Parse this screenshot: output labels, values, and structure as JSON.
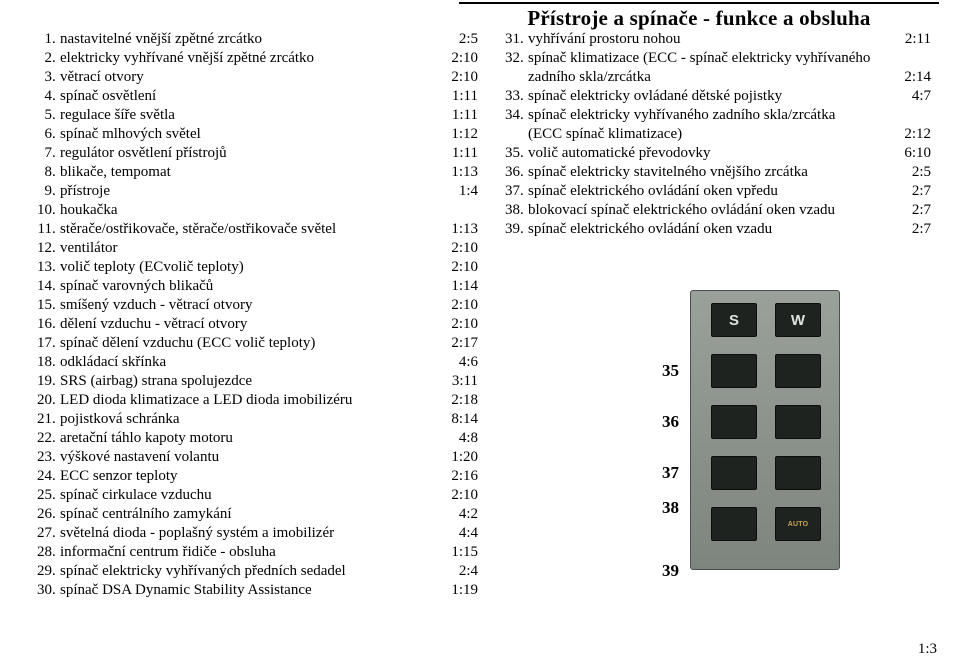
{
  "title": "Přístroje a spínače - funkce a obsluha",
  "footer_page": "1:3",
  "panel_top_letters": [
    "S",
    "W"
  ],
  "panel_auto_text": "AUTO",
  "panel_labels": [
    "35",
    "36",
    "37",
    "38",
    "39"
  ],
  "left_items": [
    {
      "n": "1",
      "t": "nastavitelné vnější zpětné zrcátko",
      "r": "2:5"
    },
    {
      "n": "2",
      "t": "elektricky vyhřívané vnější zpětné zrcátko",
      "r": "2:10"
    },
    {
      "n": "3",
      "t": "větrací otvory",
      "r": "2:10"
    },
    {
      "n": "4",
      "t": "spínač osvětlení",
      "r": "1:11"
    },
    {
      "n": "5",
      "t": "regulace šíře světla",
      "r": "1:11"
    },
    {
      "n": "6",
      "t": "spínač mlhových světel",
      "r": "1:12"
    },
    {
      "n": "7",
      "t": "regulátor osvětlení přístrojů",
      "r": "1:11"
    },
    {
      "n": "8",
      "t": "blikače, tempomat",
      "r": "1:13"
    },
    {
      "n": "9",
      "t": "přístroje",
      "r": "1:4"
    },
    {
      "n": "10",
      "t": "houkačka",
      "r": ""
    },
    {
      "n": "11",
      "t": "stěrače/ostřikovače, stěrače/ostřikovače světel",
      "r": "1:13"
    },
    {
      "n": "12",
      "t": "ventilátor",
      "r": "2:10"
    },
    {
      "n": "13",
      "t": "volič teploty (ECvolič teploty)",
      "r": "2:10"
    },
    {
      "n": "14",
      "t": "spínač varovných blikačů",
      "r": "1:14"
    },
    {
      "n": "15",
      "t": "smíšený vzduch - větrací otvory",
      "r": "2:10"
    },
    {
      "n": "16",
      "t": "dělení vzduchu - větrací otvory",
      "r": "2:10"
    },
    {
      "n": "17",
      "t": "spínač dělení vzduchu (ECC volič teploty)",
      "r": "2:17"
    },
    {
      "n": "18",
      "t": "odkládací skřínka",
      "r": "4:6"
    },
    {
      "n": "19",
      "t": "SRS (airbag) strana spolujezdce",
      "r": "3:11"
    },
    {
      "n": "20",
      "t": "LED dioda klimatizace a LED dioda imobilizéru",
      "r": "2:18"
    },
    {
      "n": "21",
      "t": "pojistková schránka",
      "r": "8:14"
    },
    {
      "n": "22",
      "t": "aretační táhlo kapoty motoru",
      "r": "4:8"
    },
    {
      "n": "23",
      "t": "výškové nastavení volantu",
      "r": "1:20"
    },
    {
      "n": "24",
      "t": "ECC senzor teploty",
      "r": "2:16"
    },
    {
      "n": "25",
      "t": "spínač cirkulace vzduchu",
      "r": "2:10"
    },
    {
      "n": "26",
      "t": "spínač centrálního zamykání",
      "r": "4:2"
    },
    {
      "n": "27",
      "t": "světelná dioda - poplašný systém a imobilizér",
      "r": "4:4"
    },
    {
      "n": "28",
      "t": "informační centrum řidiče - obsluha",
      "r": "1:15"
    },
    {
      "n": "29",
      "t": "spínač elektricky vyhřívaných předních sedadel",
      "r": "2:4"
    },
    {
      "n": "30",
      "t": "spínač DSA Dynamic Stability Assistance",
      "r": "1:19"
    }
  ],
  "right_items": [
    {
      "n": "31",
      "t": "vyhřívání prostoru nohou",
      "r": "2:11",
      "cont": []
    },
    {
      "n": "32",
      "t": "spínač klimatizace (ECC - spínač elektricky vyhřívaného",
      "r": "",
      "cont": [
        {
          "t": "zadního skla/zrcátka",
          "r": "2:14"
        }
      ]
    },
    {
      "n": "33",
      "t": "spínač elektricky ovládané dětské pojistky",
      "r": "4:7",
      "cont": []
    },
    {
      "n": "34",
      "t": "spínač elektricky vyhřívaného zadního skla/zrcátka",
      "r": "",
      "cont": [
        {
          "t": "(ECC spínač klimatizace)",
          "r": "2:12"
        }
      ]
    },
    {
      "n": "35",
      "t": "volič automatické převodovky",
      "r": "6:10",
      "cont": []
    },
    {
      "n": "36",
      "t": "spínač elektricky stavitelného vnějšího zrcátka",
      "r": "2:5",
      "cont": []
    },
    {
      "n": "37",
      "t": "spínač elektrického ovládání oken vpředu",
      "r": "2:7",
      "cont": []
    },
    {
      "n": "38",
      "t": "blokovací spínač elektrického ovládání oken vzadu",
      "r": "2:7",
      "cont": []
    },
    {
      "n": "39",
      "t": "spínač elektrického ovládání oken vzadu",
      "r": "2:7",
      "cont": []
    }
  ]
}
